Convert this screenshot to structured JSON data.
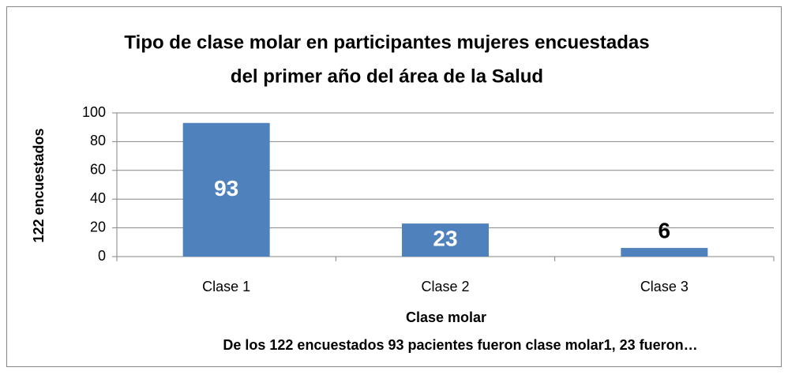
{
  "chart_data": {
    "type": "bar",
    "title": [
      "Tipo de clase molar en participantes mujeres encuestadas",
      "del primer año del área de la Salud"
    ],
    "y_label": "122 encuestados",
    "x_label": "Clase molar",
    "caption": "De los 122 encuestados 93 pacientes fueron clase molar1, 23 fueron…",
    "categories": [
      "Clase 1",
      "Clase 2",
      "Clase 3"
    ],
    "values": [
      93,
      23,
      6
    ],
    "color": "#4f81bd",
    "ylim": [
      0,
      100
    ],
    "yticks": [
      0,
      20,
      40,
      60,
      80,
      100
    ],
    "grid": true
  }
}
